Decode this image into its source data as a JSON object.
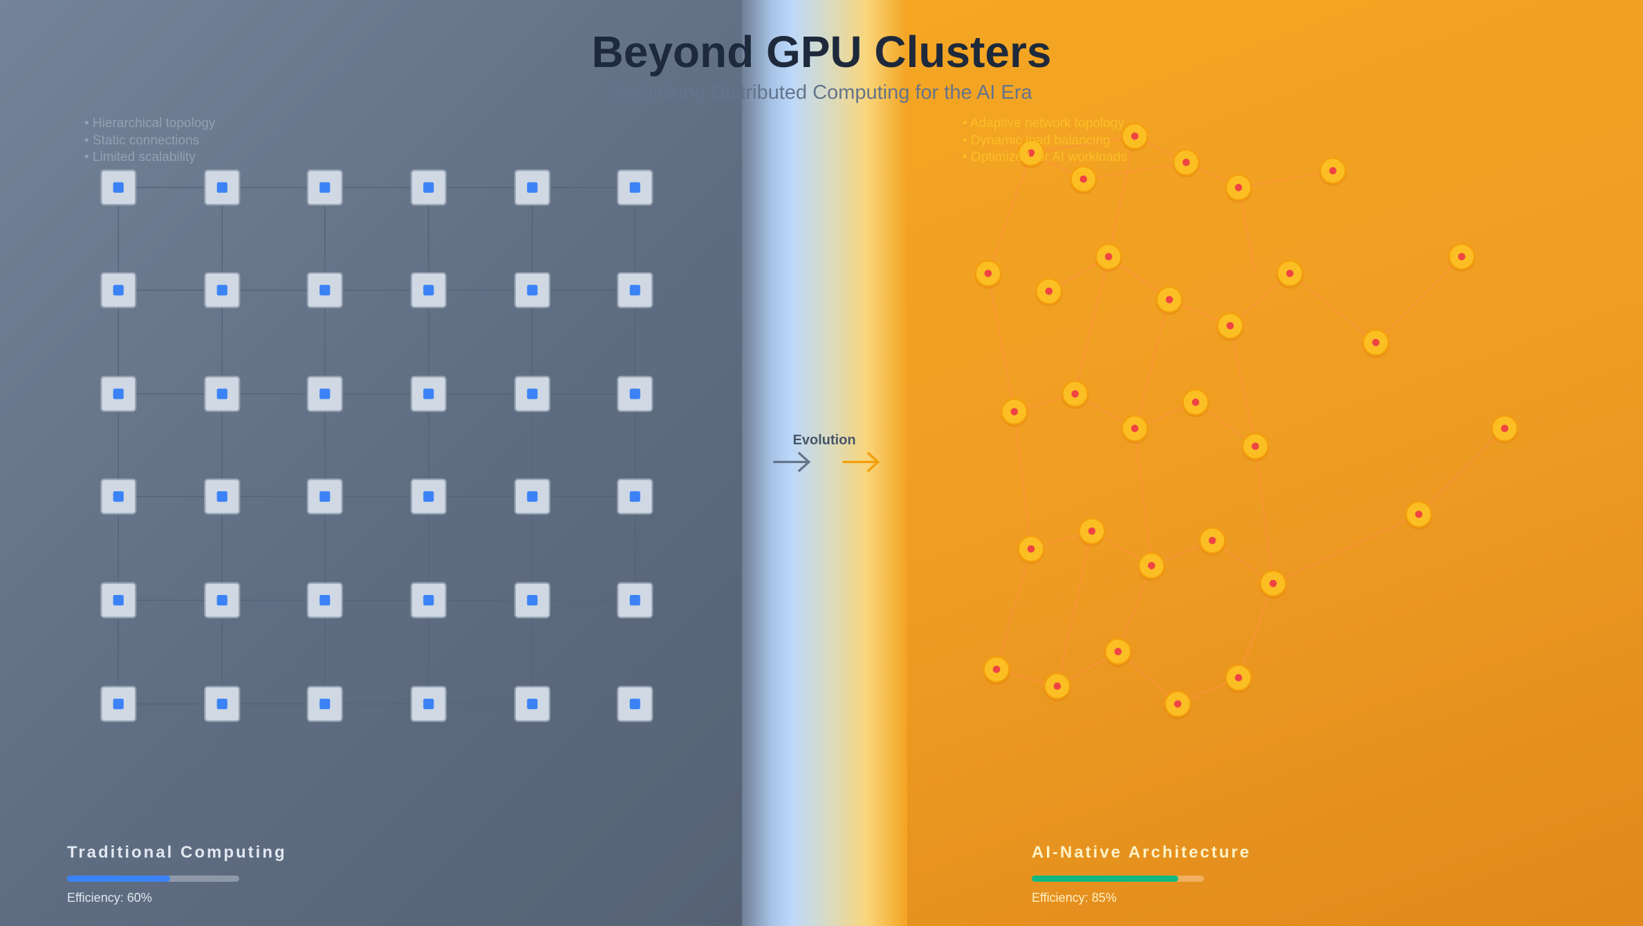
{
  "header": {
    "title": "Beyond GPU Clusters",
    "subtitle": "Rethinking Distributed Computing for the AI Era"
  },
  "traditional": {
    "bullets": [
      "• Hierarchical topology",
      "• Static connections",
      "• Limited scalability"
    ],
    "label": "Traditional Computing",
    "efficiency_text": "Efficiency: 60%",
    "efficiency": 60,
    "bar_color": "#3b82f6",
    "node_color": "#3b82f6"
  },
  "ai_native": {
    "bullets": [
      "• Adaptive network topology",
      "• Dynamic load balancing",
      "• Optimized for AI workloads"
    ],
    "label": "AI-Native Architecture",
    "efficiency_text": "Efficiency: 85%",
    "efficiency": 85,
    "bar_color": "#10b981",
    "node_color": "#fbbf24",
    "core_color": "#ef4444"
  },
  "transition": {
    "label": "Evolution",
    "arrow_left_icon": "arrow-right-icon",
    "arrow_right_icon": "arrow-right-icon"
  }
}
